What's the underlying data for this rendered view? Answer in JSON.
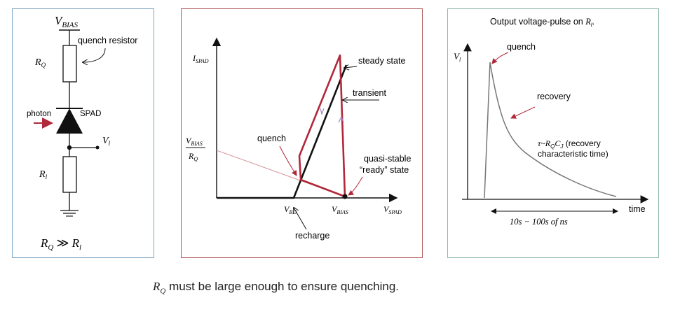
{
  "circuit": {
    "vbias": {
      "main": "V",
      "sub": "BIAS"
    },
    "rq": {
      "main": "R",
      "sub": "Q"
    },
    "quench_resistor_label": "quench resistor",
    "photon_label": "photon",
    "spad_label": "SPAD",
    "vl": {
      "main": "V",
      "sub": "l"
    },
    "rl": {
      "main": "R",
      "sub": "l"
    },
    "relation": {
      "lhs_main": "R",
      "lhs_sub": "Q",
      "op": "≫",
      "rhs_main": "R",
      "rhs_sub": "l"
    }
  },
  "iv": {
    "ylabel": {
      "main": "I",
      "sub": "SPAD"
    },
    "xlabel": {
      "main": "V",
      "sub": "SPAD"
    },
    "vbias_over_rq": {
      "num_main": "V",
      "num_sub": "BIAS",
      "den_main": "R",
      "den_sub": "Q"
    },
    "vbd": {
      "main": "V",
      "sub": "BD"
    },
    "vbias": {
      "main": "V",
      "sub": "BIAS"
    },
    "steady_state": "steady state",
    "transient": "transient",
    "quench": "quench",
    "quasi_stable_1": "quasi-stable",
    "quasi_stable_2": "“ready” state",
    "recharge": "recharge"
  },
  "pulse": {
    "title_text": "Output voltage-pulse on ",
    "title_sym_main": "R",
    "title_sym_sub": "l",
    "title_end": ".",
    "ylabel": {
      "main": "V",
      "sub": "l"
    },
    "quench": "quench",
    "recovery": "recovery",
    "tau_line1_sym": "τ~R",
    "tau_line1_sub1": "Q",
    "tau_line1_mid": "C",
    "tau_line1_sub2": "J",
    "tau_line1_text": " (recovery",
    "tau_line2": "characteristic time)",
    "time": "time",
    "duration": "10s − 100s of ns"
  },
  "footer": {
    "sym_main": "R",
    "sym_sub": "Q",
    "text": " must be large enough to ensure quenching."
  },
  "colors": {
    "accent": "#b0283a",
    "axis": "#111111",
    "light_curve": "#d49aa0",
    "grey_curve": "#777777"
  }
}
